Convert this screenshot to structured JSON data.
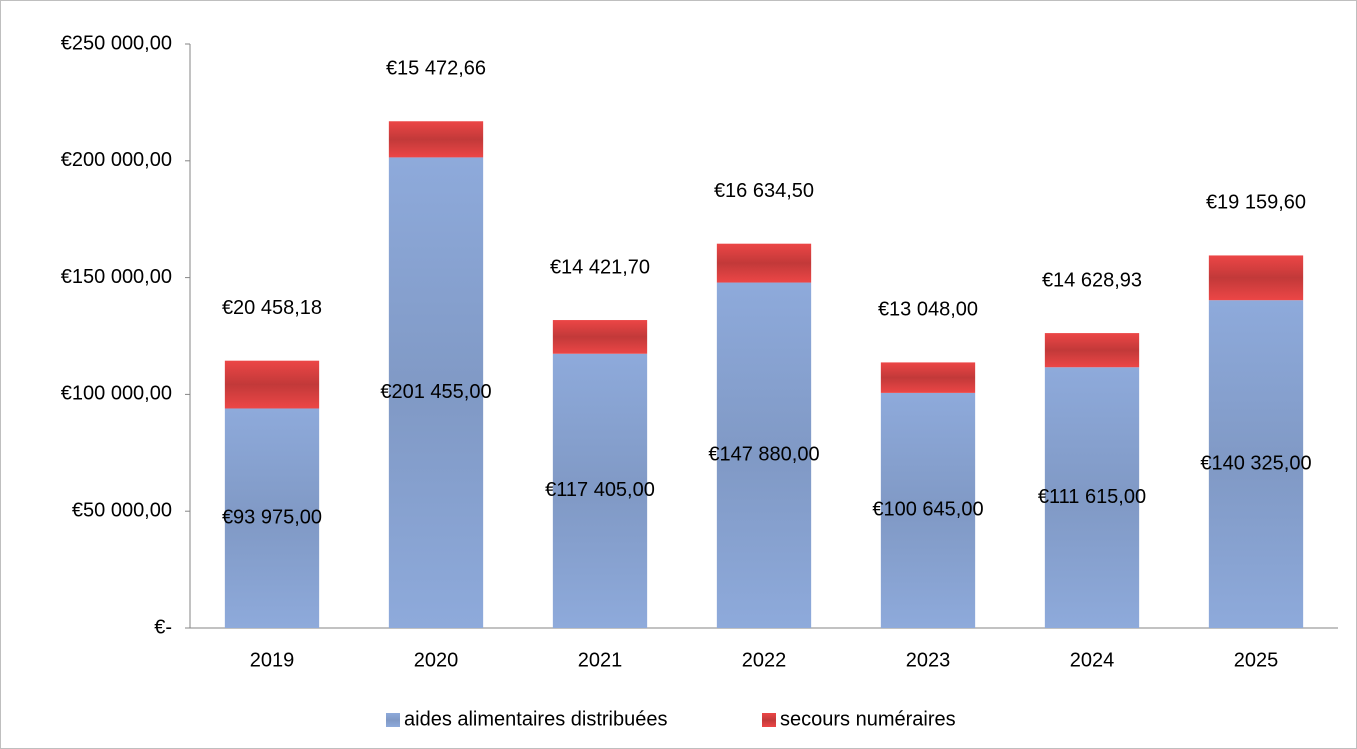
{
  "chart_data": {
    "type": "stacked_bar",
    "categories": [
      "2019",
      "2020",
      "2021",
      "2022",
      "2023",
      "2024",
      "2025"
    ],
    "series": [
      {
        "name": "aides alimentaires distribuées",
        "color": "#8eaadb",
        "values": [
          93975,
          201455,
          117405,
          147880,
          100645,
          111615,
          140325
        ],
        "value_labels": [
          "€93 975,00",
          "€201 455,00",
          "€117 405,00",
          "€147 880,00",
          "€100 645,00",
          "€111 615,00",
          "€140 325,00"
        ]
      },
      {
        "name": "secours numéraires",
        "color": "#ec4646",
        "values": [
          20458.18,
          15472.66,
          14421.7,
          16634.5,
          13048.0,
          14628.93,
          19159.6
        ],
        "value_labels": [
          "€20 458,18",
          "€15 472,66",
          "€14 421,70",
          "€16 634,50",
          "€13 048,00",
          "€14 628,93",
          "€19 159,60"
        ]
      }
    ],
    "ylim": [
      0,
      250000
    ],
    "yticks": [
      {
        "value": 0,
        "label": "€-"
      },
      {
        "value": 50000,
        "label": "€50 000,00"
      },
      {
        "value": 100000,
        "label": "€100 000,00"
      },
      {
        "value": 150000,
        "label": "€150 000,00"
      },
      {
        "value": 200000,
        "label": "€200 000,00"
      },
      {
        "value": 250000,
        "label": "€250 000,00"
      }
    ],
    "grid": false,
    "legend": "bottom"
  }
}
